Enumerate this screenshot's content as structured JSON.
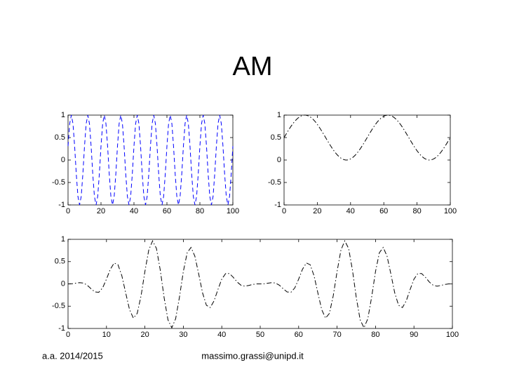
{
  "title": "AM",
  "footer": {
    "left": "a.a. 2014/2015",
    "center": "massimo.grassi@unipd.it"
  },
  "chart_data": [
    {
      "type": "line",
      "color": "#0000ff",
      "line_style": "dashed",
      "x": [
        0,
        1,
        2,
        3,
        4,
        5,
        6,
        7,
        8,
        9,
        10,
        11,
        12,
        13,
        14,
        15,
        16,
        17,
        18,
        19,
        20,
        21,
        22,
        23,
        24,
        25,
        26,
        27,
        28,
        29,
        30,
        31,
        32,
        33,
        34,
        35,
        36,
        37,
        38,
        39,
        40,
        41,
        42,
        43,
        44,
        45,
        46,
        47,
        48,
        49,
        50,
        51,
        52,
        53,
        54,
        55,
        56,
        57,
        58,
        59,
        60,
        61,
        62,
        63,
        64,
        65,
        66,
        67,
        68,
        69,
        70,
        71,
        72,
        73,
        74,
        75,
        76,
        77,
        78,
        79,
        80,
        81,
        82,
        83,
        84,
        85,
        86,
        87,
        88,
        89,
        90,
        91,
        92,
        93,
        94,
        95,
        96,
        97,
        98,
        99,
        100
      ],
      "values": [
        0.309,
        0.809,
        1,
        0.809,
        0.309,
        -0.309,
        -0.809,
        -1,
        -0.809,
        -0.309,
        0.309,
        0.809,
        1,
        0.809,
        0.309,
        -0.309,
        -0.809,
        -1,
        -0.809,
        -0.309,
        0.309,
        0.809,
        1,
        0.809,
        0.309,
        -0.309,
        -0.809,
        -1,
        -0.809,
        -0.309,
        0.309,
        0.809,
        1,
        0.809,
        0.309,
        -0.309,
        -0.809,
        -1,
        -0.809,
        -0.309,
        0.309,
        0.809,
        1,
        0.809,
        0.309,
        -0.309,
        -0.809,
        -1,
        -0.809,
        -0.309,
        0.309,
        0.809,
        1,
        0.809,
        0.309,
        -0.309,
        -0.809,
        -1,
        -0.809,
        -0.309,
        0.309,
        0.809,
        1,
        0.809,
        0.309,
        -0.309,
        -0.809,
        -1,
        -0.809,
        -0.309,
        0.309,
        0.809,
        1,
        0.809,
        0.309,
        -0.309,
        -0.809,
        -1,
        -0.809,
        -0.309,
        0.309,
        0.809,
        1,
        0.809,
        0.309,
        -0.309,
        -0.809,
        -1,
        -0.809,
        -0.309,
        0.309,
        0.809,
        1,
        0.809,
        0.309,
        -0.309,
        -0.809,
        -1,
        -0.809,
        -0.309,
        0.309
      ],
      "xlim": [
        0,
        100
      ],
      "xticks": [
        0,
        20,
        40,
        60,
        80,
        100
      ],
      "ylim": [
        -1,
        1
      ],
      "yticks": [
        -1,
        -0.5,
        0,
        0.5,
        1
      ]
    },
    {
      "type": "line",
      "color": "#000000",
      "line_style": "dashdot",
      "x": [
        0,
        1,
        2,
        3,
        4,
        5,
        6,
        7,
        8,
        9,
        10,
        11,
        12,
        13,
        14,
        15,
        16,
        17,
        18,
        19,
        20,
        21,
        22,
        23,
        24,
        25,
        26,
        27,
        28,
        29,
        30,
        31,
        32,
        33,
        34,
        35,
        36,
        37,
        38,
        39,
        40,
        41,
        42,
        43,
        44,
        45,
        46,
        47,
        48,
        49,
        50,
        51,
        52,
        53,
        54,
        55,
        56,
        57,
        58,
        59,
        60,
        61,
        62,
        63,
        64,
        65,
        66,
        67,
        68,
        69,
        70,
        71,
        72,
        73,
        74,
        75,
        76,
        77,
        78,
        79,
        80,
        81,
        82,
        83,
        84,
        85,
        86,
        87,
        88,
        89,
        90,
        91,
        92,
        93,
        94,
        95,
        96,
        97,
        98,
        99,
        100
      ],
      "values": [
        0.5,
        0.563,
        0.624,
        0.684,
        0.741,
        0.794,
        0.842,
        0.885,
        0.922,
        0.952,
        0.976,
        0.991,
        0.999,
        0.999,
        0.991,
        0.976,
        0.952,
        0.922,
        0.885,
        0.842,
        0.794,
        0.741,
        0.684,
        0.624,
        0.563,
        0.5,
        0.437,
        0.376,
        0.316,
        0.259,
        0.206,
        0.158,
        0.115,
        0.078,
        0.048,
        0.024,
        0.009,
        0.001,
        0.001,
        0.009,
        0.024,
        0.048,
        0.078,
        0.115,
        0.158,
        0.206,
        0.259,
        0.316,
        0.376,
        0.437,
        0.5,
        0.563,
        0.624,
        0.684,
        0.741,
        0.794,
        0.842,
        0.885,
        0.922,
        0.952,
        0.976,
        0.991,
        0.999,
        0.999,
        0.991,
        0.976,
        0.952,
        0.922,
        0.885,
        0.842,
        0.794,
        0.741,
        0.684,
        0.624,
        0.563,
        0.5,
        0.437,
        0.376,
        0.316,
        0.259,
        0.206,
        0.158,
        0.115,
        0.078,
        0.048,
        0.024,
        0.009,
        0.001,
        0.001,
        0.009,
        0.024,
        0.048,
        0.078,
        0.115,
        0.158,
        0.206,
        0.259,
        0.316,
        0.376,
        0.437,
        0.5
      ],
      "xlim": [
        0,
        100
      ],
      "xticks": [
        0,
        20,
        40,
        60,
        80,
        100
      ],
      "ylim": [
        -1,
        1
      ],
      "yticks": [
        -1,
        -0.5,
        0,
        0.5,
        1
      ]
    },
    {
      "type": "line",
      "color": "#000000",
      "line_style": "dashdot",
      "x": [
        0,
        1,
        2,
        3,
        4,
        5,
        6,
        7,
        8,
        9,
        10,
        11,
        12,
        13,
        14,
        15,
        16,
        17,
        18,
        19,
        20,
        21,
        22,
        23,
        24,
        25,
        26,
        27,
        28,
        29,
        30,
        31,
        32,
        33,
        34,
        35,
        36,
        37,
        38,
        39,
        40,
        41,
        42,
        43,
        44,
        45,
        46,
        47,
        48,
        49,
        50,
        51,
        52,
        53,
        54,
        55,
        56,
        57,
        58,
        59,
        60,
        61,
        62,
        63,
        64,
        65,
        66,
        67,
        68,
        69,
        70,
        71,
        72,
        73,
        74,
        75,
        76,
        77,
        78,
        79,
        80,
        81,
        82,
        83,
        84,
        85,
        86,
        87,
        88,
        89,
        90,
        91,
        92,
        93,
        94,
        95,
        96,
        97,
        98,
        99,
        100
      ],
      "values": [
        0,
        0.003,
        0.016,
        0.028,
        0.019,
        -0.03,
        -0.11,
        -0.181,
        -0.188,
        -0.089,
        0.107,
        0.329,
        0.469,
        0.43,
        0.183,
        -0.202,
        -0.577,
        -0.768,
        -0.662,
        -0.267,
        0.279,
        0.759,
        0.965,
        0.796,
        0.308,
        -0.309,
        -0.806,
        -0.984,
        -0.781,
        -0.29,
        0.279,
        0.699,
        0.819,
        0.621,
        0.22,
        -0.202,
        -0.48,
        -0.531,
        -0.379,
        -0.126,
        0.107,
        0.232,
        0.232,
        0.147,
        0.042,
        -0.03,
        -0.05,
        -0.035,
        -0.013,
        -0.001,
        0,
        0.003,
        0.016,
        0.028,
        0.019,
        -0.03,
        -0.11,
        -0.181,
        -0.188,
        -0.089,
        0.107,
        0.329,
        0.469,
        0.43,
        0.183,
        -0.202,
        -0.577,
        -0.768,
        -0.662,
        -0.267,
        0.279,
        0.759,
        0.965,
        0.796,
        0.308,
        -0.309,
        -0.806,
        -0.984,
        -0.781,
        -0.29,
        0.279,
        0.699,
        0.819,
        0.621,
        0.22,
        -0.202,
        -0.48,
        -0.531,
        -0.379,
        -0.126,
        0.107,
        0.232,
        0.232,
        0.147,
        0.042,
        -0.03,
        -0.05,
        -0.035,
        -0.013,
        -0.001,
        0
      ],
      "xlim": [
        0,
        100
      ],
      "xticks": [
        0,
        10,
        20,
        30,
        40,
        50,
        60,
        70,
        80,
        90,
        100
      ],
      "ylim": [
        -1,
        1
      ],
      "yticks": [
        -1,
        -0.5,
        0,
        0.5,
        1
      ]
    }
  ]
}
